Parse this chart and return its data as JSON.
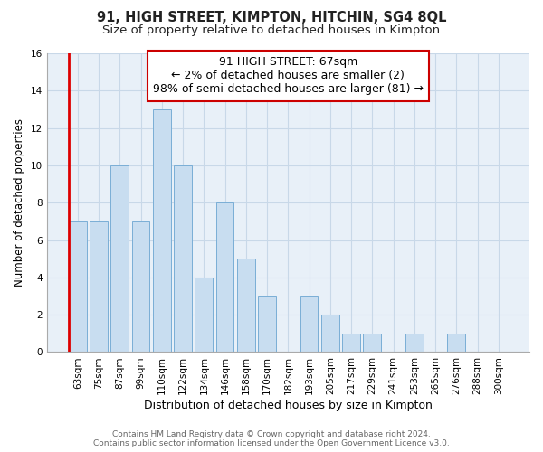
{
  "title": "91, HIGH STREET, KIMPTON, HITCHIN, SG4 8QL",
  "subtitle": "Size of property relative to detached houses in Kimpton",
  "xlabel": "Distribution of detached houses by size in Kimpton",
  "ylabel": "Number of detached properties",
  "bin_labels": [
    "63sqm",
    "75sqm",
    "87sqm",
    "99sqm",
    "110sqm",
    "122sqm",
    "134sqm",
    "146sqm",
    "158sqm",
    "170sqm",
    "182sqm",
    "193sqm",
    "205sqm",
    "217sqm",
    "229sqm",
    "241sqm",
    "253sqm",
    "265sqm",
    "276sqm",
    "288sqm",
    "300sqm"
  ],
  "bar_heights": [
    7,
    7,
    10,
    7,
    13,
    10,
    4,
    8,
    5,
    3,
    0,
    3,
    2,
    1,
    1,
    0,
    1,
    0,
    1,
    0,
    0
  ],
  "bar_color": "#c8ddf0",
  "bar_edge_color": "#7aaed6",
  "highlight_left_color": "#dd0000",
  "annotation_line1": "91 HIGH STREET: 67sqm",
  "annotation_line2": "← 2% of detached houses are smaller (2)",
  "annotation_line3": "98% of semi-detached houses are larger (81) →",
  "annotation_box_edge_color": "#cc0000",
  "ylim": [
    0,
    16
  ],
  "yticks": [
    0,
    2,
    4,
    6,
    8,
    10,
    12,
    14,
    16
  ],
  "grid_color": "#c8d8e8",
  "bg_color": "#ffffff",
  "plot_bg_color": "#e8f0f8",
  "footer_line1": "Contains HM Land Registry data © Crown copyright and database right 2024.",
  "footer_line2": "Contains public sector information licensed under the Open Government Licence v3.0.",
  "title_fontsize": 10.5,
  "subtitle_fontsize": 9.5,
  "xlabel_fontsize": 9,
  "ylabel_fontsize": 8.5,
  "tick_fontsize": 7.5,
  "annotation_fontsize": 9,
  "footer_fontsize": 6.5
}
